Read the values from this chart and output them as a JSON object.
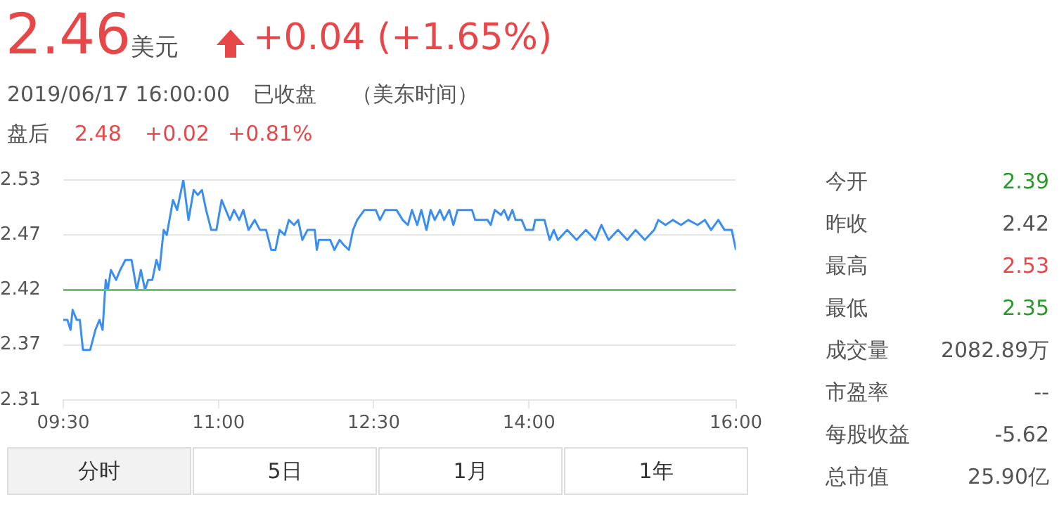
{
  "chart_data": [
    {
      "type": "line",
      "title": "2.46",
      "subtitle": "美元",
      "annotations": [
        "+0.04 (+1.65%)",
        "2019/06/17 16:00:00",
        "已收盘",
        "（美东时间）",
        "盘后",
        "2.48",
        "+0.02",
        "+0.81%",
        "分时",
        "5日",
        "1月",
        "1年"
      ],
      "x": [
        9.5,
        9.54,
        9.57,
        9.59,
        9.63,
        9.66,
        9.69,
        9.76,
        9.81,
        9.85,
        9.88,
        9.91,
        9.93,
        9.96,
        10.01,
        10.05,
        10.1,
        10.16,
        10.21,
        10.25,
        10.29,
        10.32,
        10.36,
        10.4,
        10.43,
        10.47,
        10.5,
        10.56,
        10.6,
        10.66,
        10.71,
        10.76,
        10.8,
        10.84,
        10.88,
        10.93,
        10.98,
        11.03,
        11.07,
        11.11,
        11.15,
        11.2,
        11.24,
        11.29,
        11.35,
        11.4,
        11.46,
        11.51,
        11.55,
        11.59,
        11.64,
        11.68,
        11.73,
        11.77,
        11.81,
        11.86,
        11.93,
        11.95,
        11.97,
        12.08,
        12.12,
        12.17,
        12.21,
        12.26,
        12.3,
        12.34,
        12.41,
        12.52,
        12.56,
        12.61,
        12.67,
        12.72,
        12.78,
        12.83,
        12.87,
        12.92,
        12.96,
        13.01,
        13.05,
        13.09,
        13.14,
        13.18,
        13.23,
        13.27,
        13.31,
        13.45,
        13.48,
        13.6,
        13.63,
        13.67,
        13.73,
        13.76,
        13.8,
        13.84,
        13.87,
        13.93,
        13.97,
        14.04,
        14.06,
        14.11,
        14.15,
        14.2,
        14.24,
        14.28,
        14.37,
        14.46,
        14.55,
        14.64,
        14.7,
        14.77,
        14.86,
        14.95,
        15.03,
        15.12,
        15.21,
        15.25,
        15.32,
        15.39,
        15.47,
        15.54,
        15.63,
        15.7,
        15.76,
        15.83,
        15.89,
        15.96,
        16.0
      ],
      "series": [
        {
          "color": "#3a8ef0",
          "values": [
            2.39,
            2.39,
            2.38,
            2.4,
            2.39,
            2.39,
            2.36,
            2.36,
            2.38,
            2.39,
            2.38,
            2.43,
            2.42,
            2.44,
            2.43,
            2.44,
            2.45,
            2.45,
            2.42,
            2.44,
            2.42,
            2.43,
            2.43,
            2.45,
            2.44,
            2.48,
            2.475,
            2.51,
            2.5,
            2.53,
            2.49,
            2.52,
            2.515,
            2.52,
            2.5,
            2.48,
            2.48,
            2.51,
            2.5,
            2.49,
            2.5,
            2.49,
            2.5,
            2.48,
            2.49,
            2.48,
            2.48,
            2.46,
            2.46,
            2.48,
            2.475,
            2.49,
            2.485,
            2.49,
            2.47,
            2.48,
            2.48,
            2.46,
            2.47,
            2.47,
            2.46,
            2.47,
            2.465,
            2.46,
            2.48,
            2.49,
            2.5,
            2.5,
            2.49,
            2.5,
            2.5,
            2.5,
            2.49,
            2.485,
            2.5,
            2.485,
            2.5,
            2.48,
            2.5,
            2.49,
            2.5,
            2.49,
            2.5,
            2.485,
            2.5,
            2.5,
            2.49,
            2.49,
            2.485,
            2.5,
            2.495,
            2.5,
            2.49,
            2.5,
            2.49,
            2.49,
            2.48,
            2.48,
            2.49,
            2.49,
            2.49,
            2.47,
            2.48,
            2.47,
            2.48,
            2.47,
            2.48,
            2.47,
            2.485,
            2.47,
            2.48,
            2.47,
            2.48,
            2.47,
            2.48,
            2.49,
            2.485,
            2.49,
            2.485,
            2.49,
            2.485,
            2.49,
            2.48,
            2.49,
            2.48,
            2.48,
            2.46
          ]
        }
      ],
      "xlim": [
        9.5,
        16.0
      ],
      "xticks": [
        {
          "value": 9.5,
          "label": "09:30"
        },
        {
          "value": 11,
          "label": "11:00"
        },
        {
          "value": 12.5,
          "label": "12:30"
        },
        {
          "value": 14,
          "label": "14:00"
        },
        {
          "value": 16,
          "label": "16:00"
        }
      ],
      "ylim": [
        2.31,
        2.53
      ],
      "yticks": [
        2.31,
        {
          "value": 2.365,
          "label": "2.37"
        },
        2.42,
        {
          "value": 2.475,
          "label": "2.47"
        },
        2.53
      ],
      "ref_lines": [
        {
          "axis": "y",
          "value": 2.42,
          "color": "#6cc46c"
        }
      ],
      "grid": "y",
      "legend": false,
      "marker": "none",
      "line_style": "solid"
    },
    {
      "type": "other",
      "annotations": [
        "今开",
        "2.39",
        "昨收",
        "2.42",
        "最高",
        "2.53",
        "最低",
        "2.35",
        "成交量",
        "2082.89万",
        "市盈率",
        "--",
        "每股收益",
        "-5.62",
        "总市值",
        "25.90亿"
      ]
    }
  ]
}
